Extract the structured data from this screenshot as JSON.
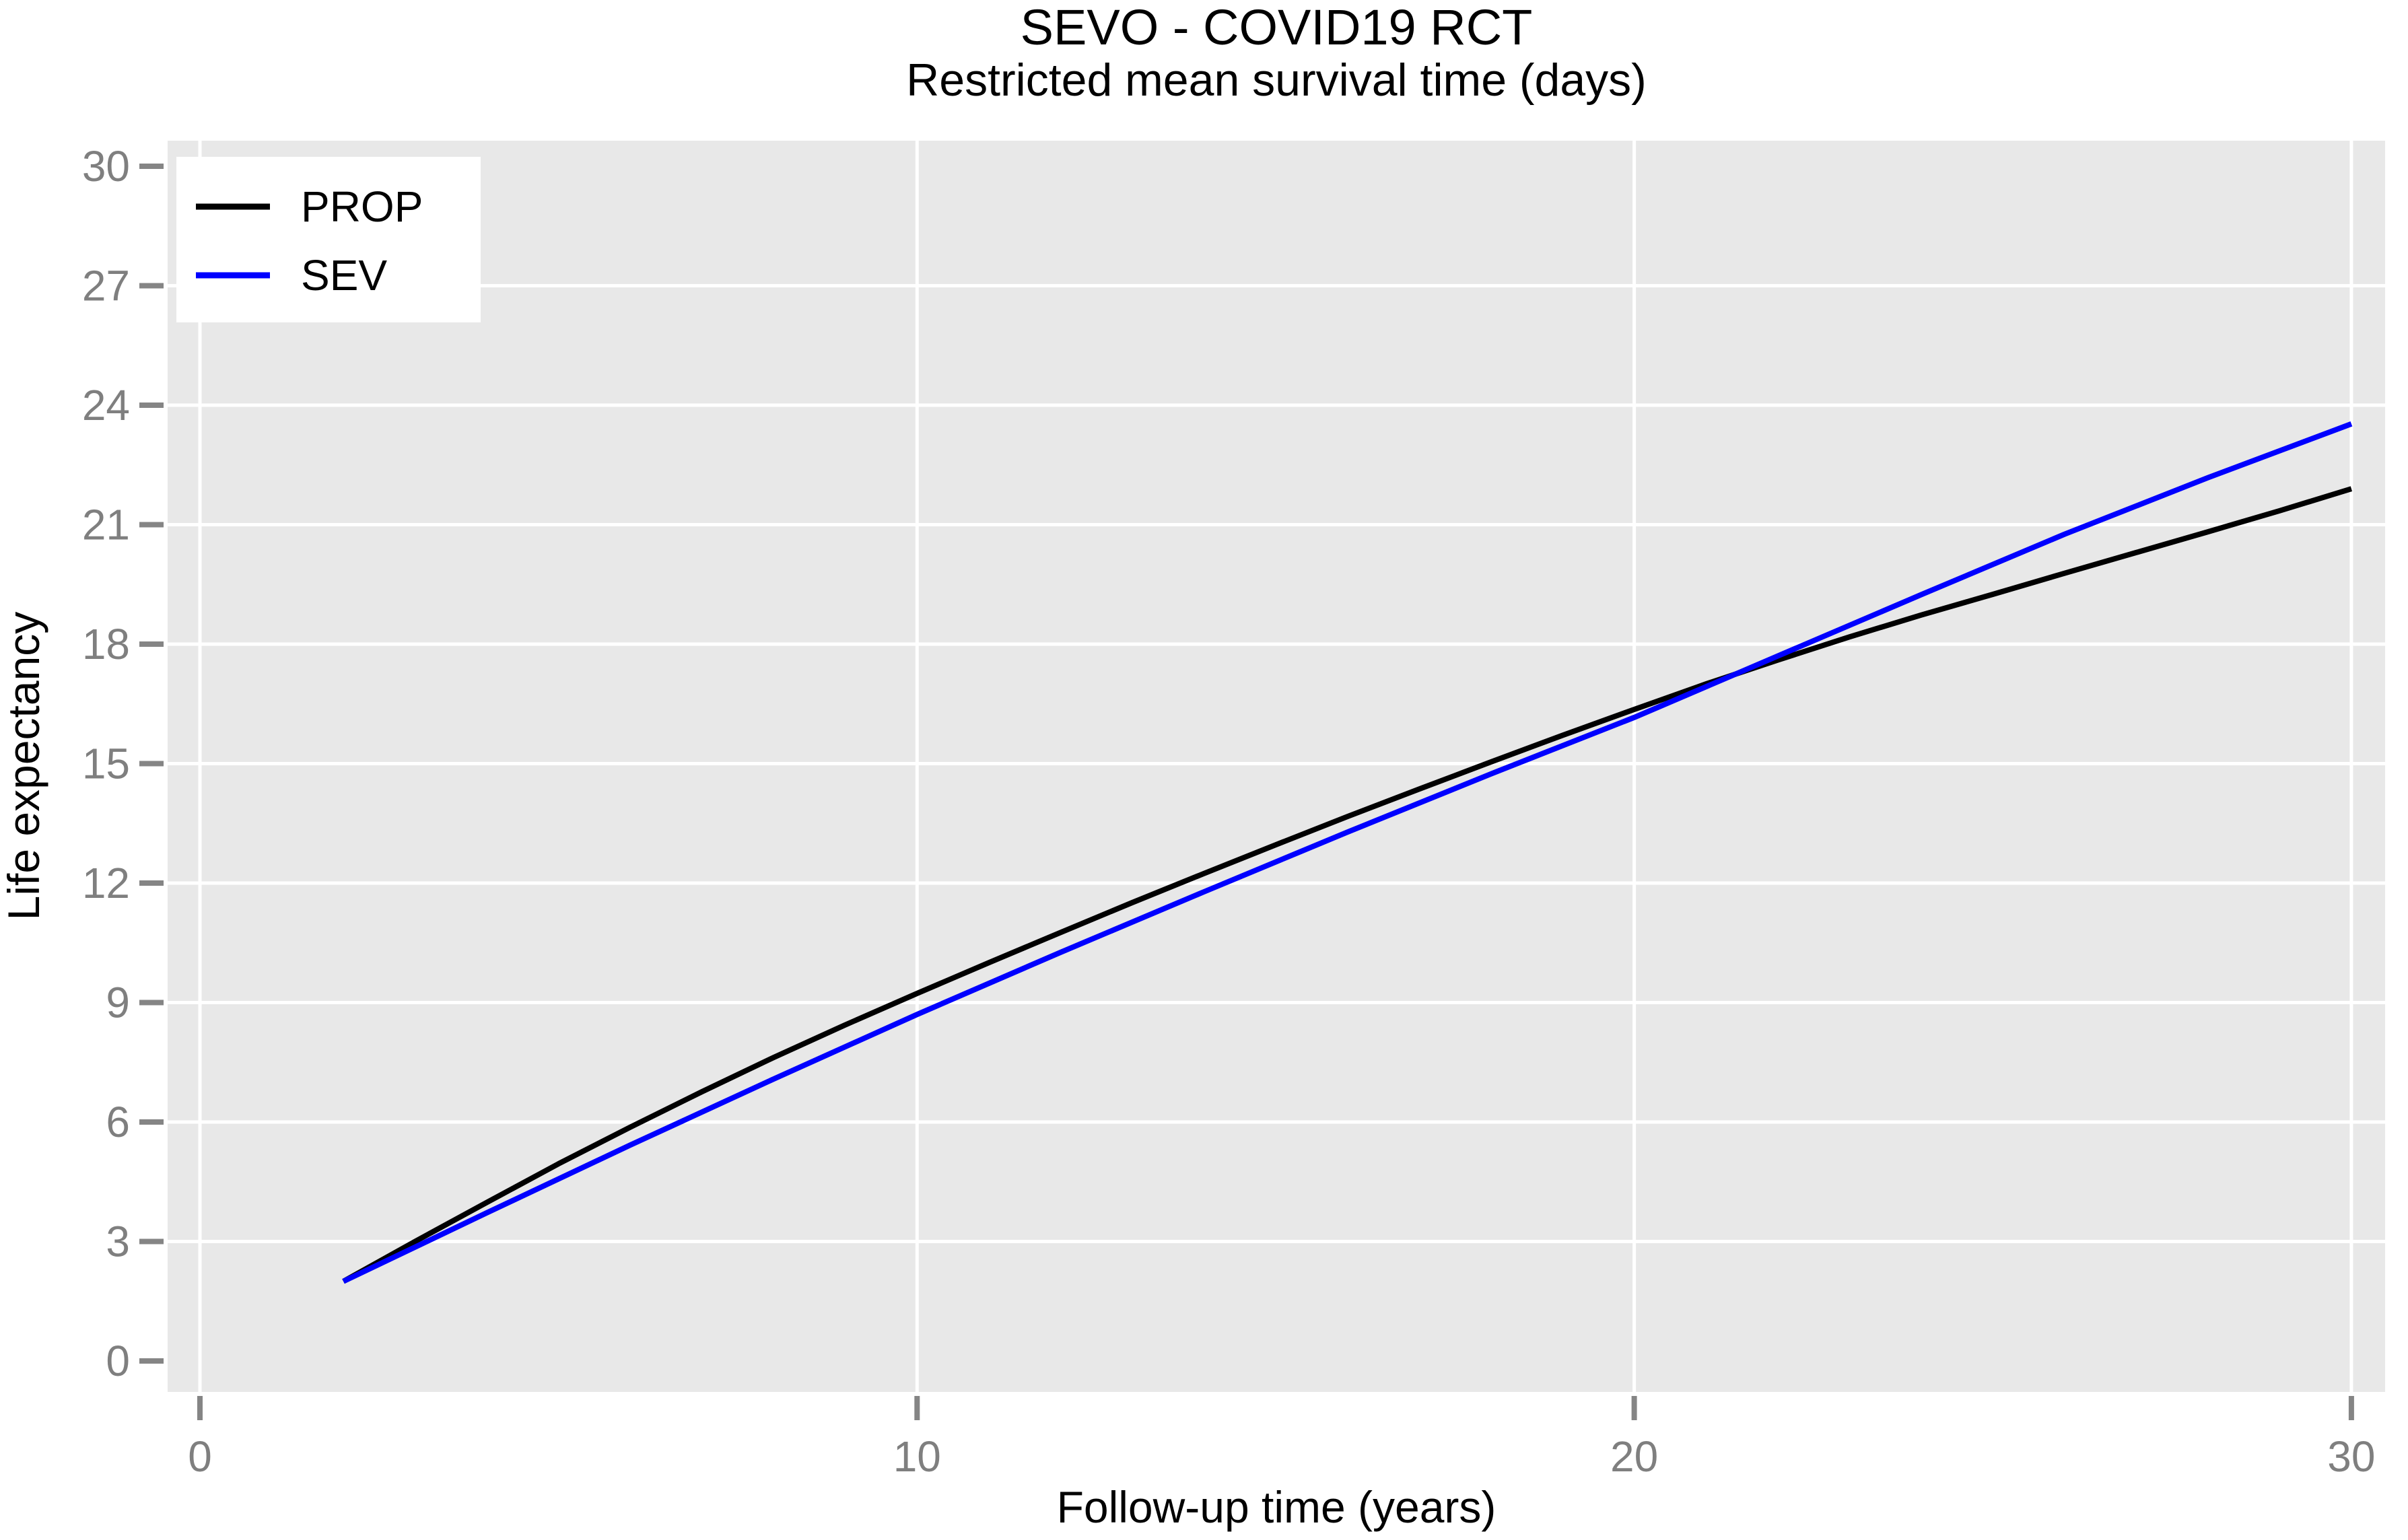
{
  "page": {
    "background_color": "#ffffff"
  },
  "chart_data": {
    "type": "line",
    "title": "SEVO - COVID19 RCT",
    "subtitle": "Restricted mean survival time (days)",
    "xlabel": "Follow-up time (years)",
    "ylabel": "Life expectancy",
    "xlim": [
      0,
      30
    ],
    "ylim": [
      0,
      30
    ],
    "x_ticks": [
      0,
      10,
      20,
      30
    ],
    "y_ticks": [
      0,
      3,
      6,
      9,
      12,
      15,
      18,
      21,
      24,
      27,
      30
    ],
    "grid": {
      "vertical_lines_at": [
        0,
        10,
        20,
        30
      ],
      "horizontal_lines_at": [
        3,
        6,
        9,
        12,
        15,
        18,
        21,
        24,
        27
      ],
      "color": "#ffffff",
      "panel_background": "#e8e8e8"
    },
    "axis_style": {
      "tick_color": "#858585",
      "tick_label_color": "#7f7f7f"
    },
    "legend": {
      "position": "top-left-inside",
      "background": "#ffffff",
      "entries": [
        {
          "label": "PROP",
          "color": "#000000"
        },
        {
          "label": "SEV",
          "color": "#0000ff"
        }
      ]
    },
    "series": [
      {
        "name": "PROP",
        "color": "#000000",
        "x": [
          2,
          3,
          4,
          5,
          6,
          7,
          8,
          9,
          10,
          11,
          12,
          13,
          14,
          15,
          16,
          17,
          18,
          19,
          20,
          21,
          22,
          23,
          24,
          25,
          26,
          27,
          28,
          29,
          30
        ],
        "y": [
          2.0,
          3.0,
          3.98,
          4.95,
          5.87,
          6.76,
          7.62,
          8.44,
          9.23,
          10.0,
          10.76,
          11.51,
          12.24,
          12.96,
          13.67,
          14.36,
          15.04,
          15.71,
          16.36,
          17.0,
          17.6,
          18.18,
          18.73,
          19.25,
          19.78,
          20.3,
          20.82,
          21.35,
          21.9
        ]
      },
      {
        "name": "SEV",
        "color": "#0000ff",
        "x": [
          2,
          4,
          6,
          8,
          10,
          12,
          14,
          16,
          18,
          20,
          22,
          24,
          26,
          28,
          30
        ],
        "y": [
          2.0,
          3.72,
          5.42,
          7.08,
          8.7,
          10.26,
          11.78,
          13.28,
          14.74,
          16.16,
          17.7,
          19.24,
          20.76,
          22.18,
          23.53
        ]
      }
    ]
  }
}
